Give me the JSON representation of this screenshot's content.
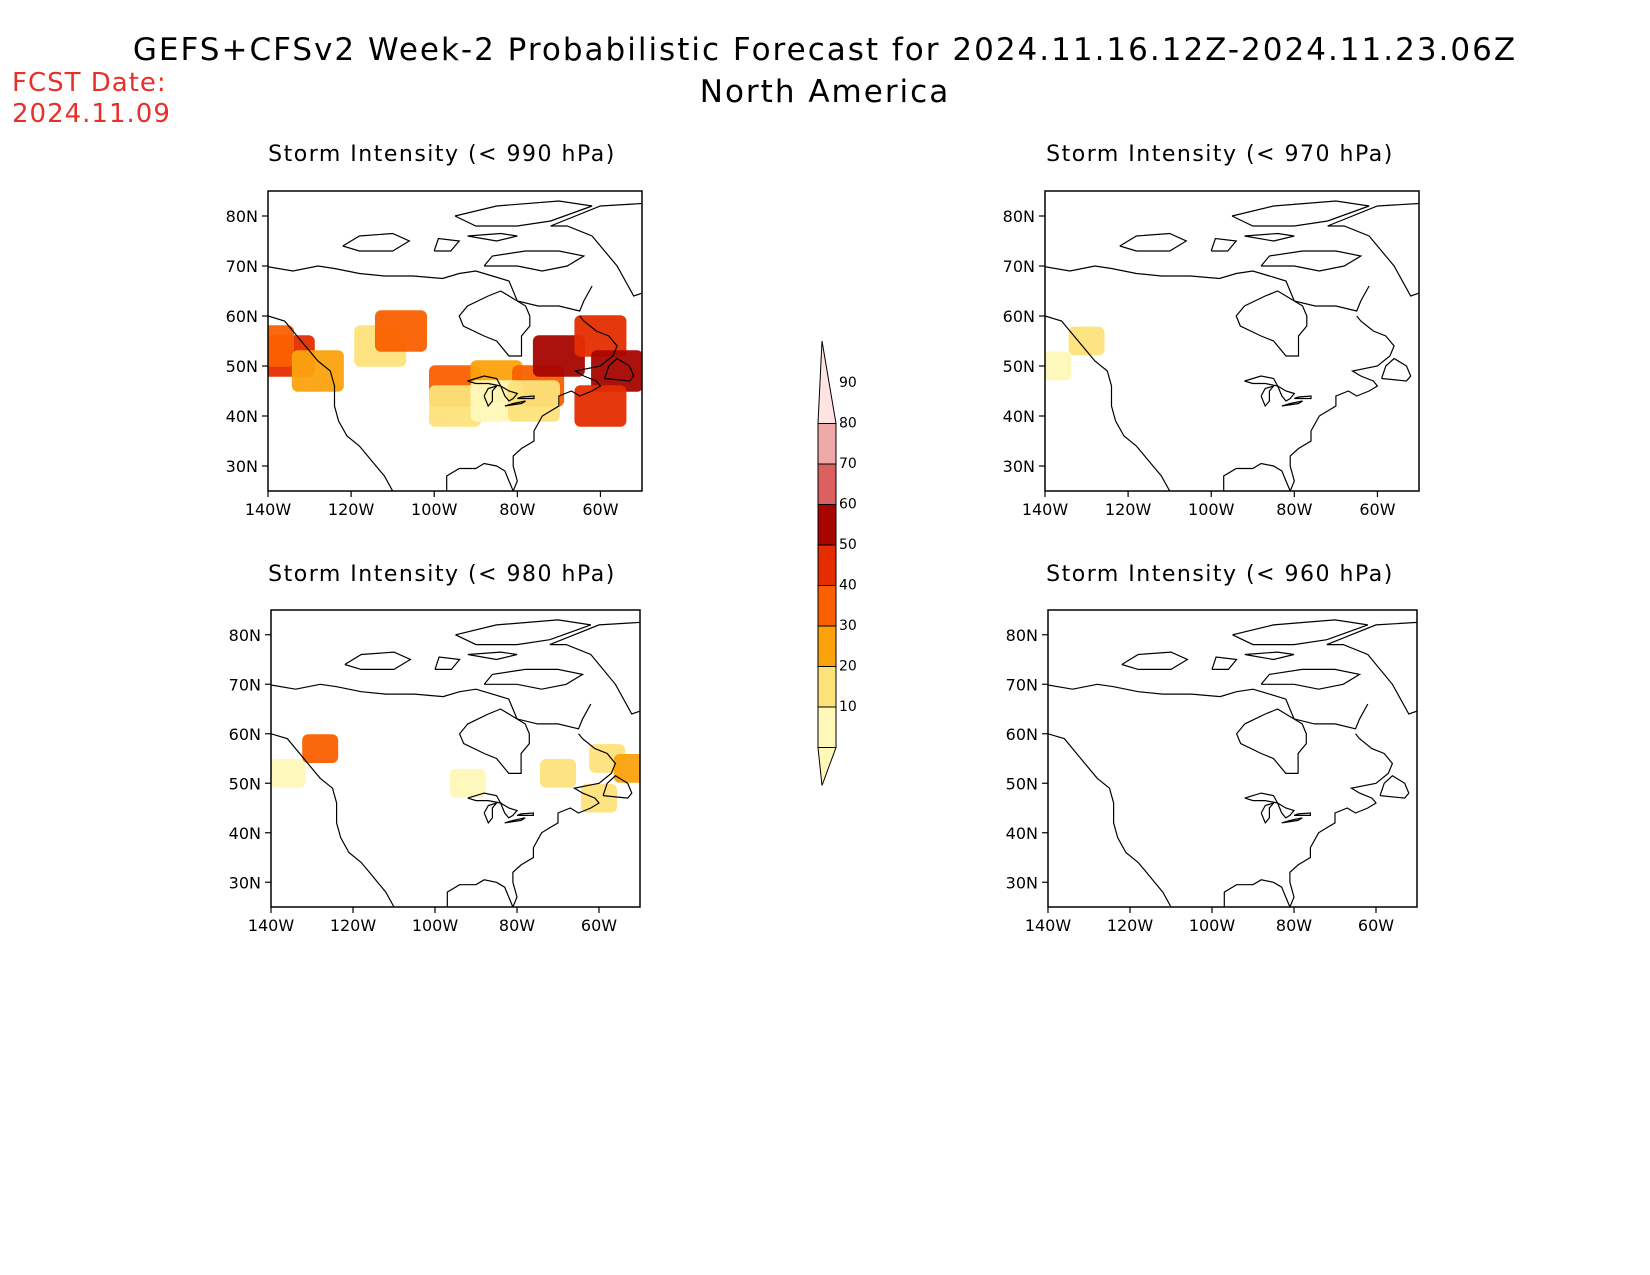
{
  "title": {
    "line1": "GEFS+CFSv2 Week-2 Probabilistic Forecast for 2024.11.16.12Z-2024.11.23.06Z",
    "line2": "North America"
  },
  "fcst_date": {
    "label": "FCST Date:",
    "value": "2024.11.09"
  },
  "axes": {
    "lat_ticks": [
      "80N",
      "70N",
      "60N",
      "50N",
      "40N",
      "30N"
    ],
    "lon_ticks": [
      "140W",
      "120W",
      "100W",
      "80W",
      "60W"
    ]
  },
  "colorbar": {
    "levels": [
      "10",
      "20",
      "30",
      "40",
      "50",
      "60",
      "70",
      "80",
      "90"
    ],
    "colors": [
      "#fff8b8",
      "#fde27a",
      "#fba20d",
      "#fa6000",
      "#e52d00",
      "#a80500",
      "#dd6060",
      "#f0a8a8",
      "#ffe4e4"
    ]
  },
  "panels": [
    {
      "id": "p990",
      "title": "Storm Intensity (< 990 hPa)",
      "blobs": [
        {
          "lon": -135,
          "lat": 52,
          "c": "#e52d00"
        },
        {
          "lon": -140,
          "lat": 54,
          "c": "#fa6000"
        },
        {
          "lon": -128,
          "lat": 49,
          "c": "#fba20d"
        },
        {
          "lon": -113,
          "lat": 54,
          "c": "#fde27a"
        },
        {
          "lon": -108,
          "lat": 57,
          "c": "#fa6000"
        },
        {
          "lon": -95,
          "lat": 46,
          "c": "#fa6000"
        },
        {
          "lon": -85,
          "lat": 47,
          "c": "#fba20d"
        },
        {
          "lon": -75,
          "lat": 46,
          "c": "#fa6000"
        },
        {
          "lon": -70,
          "lat": 52,
          "c": "#a80500"
        },
        {
          "lon": -60,
          "lat": 56,
          "c": "#e52d00"
        },
        {
          "lon": -56,
          "lat": 49,
          "c": "#a80500"
        },
        {
          "lon": -60,
          "lat": 42,
          "c": "#e52d00"
        },
        {
          "lon": -95,
          "lat": 42,
          "c": "#fde27a"
        },
        {
          "lon": -85,
          "lat": 43,
          "c": "#fff8b8"
        },
        {
          "lon": -76,
          "lat": 43,
          "c": "#fde27a"
        }
      ]
    },
    {
      "id": "p970",
      "title": "Storm Intensity (< 970 hPa)",
      "blobs": [
        {
          "lon": -130,
          "lat": 55,
          "c": "#fde27a"
        },
        {
          "lon": -138,
          "lat": 50,
          "c": "#fff8b8"
        }
      ]
    },
    {
      "id": "p980",
      "title": "Storm Intensity (< 980 hPa)",
      "blobs": [
        {
          "lon": -136,
          "lat": 52,
          "c": "#fff8b8"
        },
        {
          "lon": -128,
          "lat": 57,
          "c": "#fa6000"
        },
        {
          "lon": -92,
          "lat": 50,
          "c": "#fff8b8"
        },
        {
          "lon": -70,
          "lat": 52,
          "c": "#fde27a"
        },
        {
          "lon": -58,
          "lat": 55,
          "c": "#fde27a"
        },
        {
          "lon": -60,
          "lat": 47,
          "c": "#fde27a"
        },
        {
          "lon": -52,
          "lat": 53,
          "c": "#fba20d"
        }
      ]
    },
    {
      "id": "p960",
      "title": "Storm Intensity (< 960 hPa)",
      "blobs": []
    }
  ]
}
